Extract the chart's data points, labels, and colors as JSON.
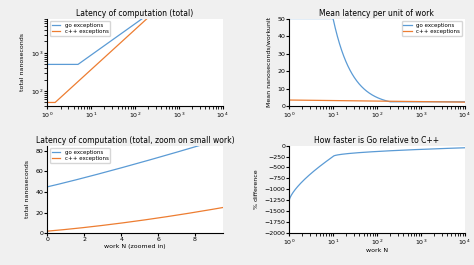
{
  "title_tl": "Latency of computation (total)",
  "title_tr": "Mean latency per unit of work",
  "title_bl": "Latency of computation (total, zoom on small work)",
  "title_br": "How faster is Go relative to C++",
  "ylabel_tl": "total nanoseconds",
  "ylabel_tr": "Mean nanoseconds/workunit",
  "ylabel_bl": "total nanoseconds",
  "ylabel_br": "% difference",
  "xlabel_bl": "work N (zoomed in)",
  "xlabel_br": "work N",
  "legend_go": "go exceptions",
  "legend_cpp": "c++ exceptions",
  "go_color": "#5b9bd5",
  "cpp_color": "#ed7d31",
  "bg_color": "#f0f0f0",
  "axes_bg": "#ffffff"
}
